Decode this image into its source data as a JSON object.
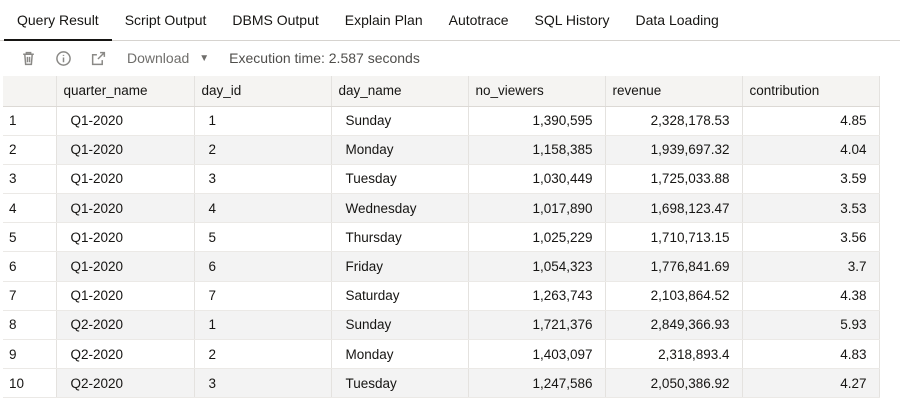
{
  "tabs": [
    {
      "label": "Query Result",
      "active": true
    },
    {
      "label": "Script Output"
    },
    {
      "label": "DBMS Output"
    },
    {
      "label": "Explain Plan"
    },
    {
      "label": "Autotrace"
    },
    {
      "label": "SQL History"
    },
    {
      "label": "Data Loading"
    }
  ],
  "toolbar": {
    "icons": [
      "trash-icon",
      "info-icon",
      "open-external-icon"
    ],
    "download_label": "Download",
    "execution_time": "Execution time: 2.587 seconds"
  },
  "grid": {
    "columns": [
      "quarter_name",
      "day_id",
      "day_name",
      "no_viewers",
      "revenue",
      "contribution"
    ],
    "rows": [
      {
        "n": "1",
        "quarter_name": "Q1-2020",
        "day_id": "1",
        "day_name": "Sunday",
        "no_viewers": "1,390,595",
        "revenue": "2,328,178.53",
        "contribution": "4.85"
      },
      {
        "n": "2",
        "quarter_name": "Q1-2020",
        "day_id": "2",
        "day_name": "Monday",
        "no_viewers": "1,158,385",
        "revenue": "1,939,697.32",
        "contribution": "4.04"
      },
      {
        "n": "3",
        "quarter_name": "Q1-2020",
        "day_id": "3",
        "day_name": "Tuesday",
        "no_viewers": "1,030,449",
        "revenue": "1,725,033.88",
        "contribution": "3.59"
      },
      {
        "n": "4",
        "quarter_name": "Q1-2020",
        "day_id": "4",
        "day_name": "Wednesday",
        "no_viewers": "1,017,890",
        "revenue": "1,698,123.47",
        "contribution": "3.53"
      },
      {
        "n": "5",
        "quarter_name": "Q1-2020",
        "day_id": "5",
        "day_name": "Thursday",
        "no_viewers": "1,025,229",
        "revenue": "1,710,713.15",
        "contribution": "3.56"
      },
      {
        "n": "6",
        "quarter_name": "Q1-2020",
        "day_id": "6",
        "day_name": "Friday",
        "no_viewers": "1,054,323",
        "revenue": "1,776,841.69",
        "contribution": "3.7"
      },
      {
        "n": "7",
        "quarter_name": "Q1-2020",
        "day_id": "7",
        "day_name": "Saturday",
        "no_viewers": "1,263,743",
        "revenue": "2,103,864.52",
        "contribution": "4.38"
      },
      {
        "n": "8",
        "quarter_name": "Q2-2020",
        "day_id": "1",
        "day_name": "Sunday",
        "no_viewers": "1,721,376",
        "revenue": "2,849,366.93",
        "contribution": "5.93"
      },
      {
        "n": "9",
        "quarter_name": "Q2-2020",
        "day_id": "2",
        "day_name": "Monday",
        "no_viewers": "1,403,097",
        "revenue": "2,318,893.4",
        "contribution": "4.83"
      },
      {
        "n": "10",
        "quarter_name": "Q2-2020",
        "day_id": "3",
        "day_name": "Tuesday",
        "no_viewers": "1,247,586",
        "revenue": "2,050,386.92",
        "contribution": "4.27"
      }
    ]
  }
}
